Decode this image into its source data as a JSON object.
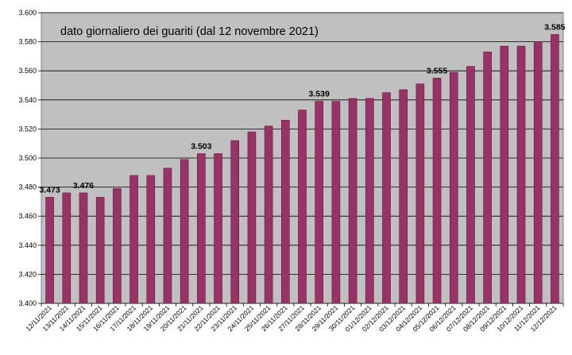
{
  "chart_data": {
    "type": "bar",
    "title": "dato giornaliero dei guariti (dal 12 novembre 2021)",
    "xlabel": "",
    "ylabel": "",
    "ylim": [
      3.4,
      3.6
    ],
    "yticks": [
      3.4,
      3.42,
      3.44,
      3.46,
      3.48,
      3.5,
      3.52,
      3.54,
      3.56,
      3.58,
      3.6
    ],
    "ytick_labels": [
      "3.400",
      "3.420",
      "3.440",
      "3.460",
      "3.480",
      "3.500",
      "3.520",
      "3.540",
      "3.560",
      "3.580",
      "3.600"
    ],
    "grid": true,
    "legend": "none",
    "colors": {
      "bar": "#993366",
      "bar_edge": "#5a1a3c",
      "plot_bg": "#c0c0c0",
      "grid": "#000000"
    },
    "categories": [
      "12/11/2021",
      "13/11/2021",
      "14/11/2021",
      "15/11/2021",
      "16/11/2021",
      "17/11/2021",
      "18/11/2021",
      "19/11/2021",
      "20/11/2021",
      "21/11/2021",
      "22/11/2021",
      "23/11/2021",
      "24/11/2021",
      "25/11/2021",
      "26/11/2021",
      "27/11/2021",
      "28/11/2021",
      "29/11/2021",
      "30/11/2021",
      "01/12/2021",
      "02/12/2021",
      "03/12/2021",
      "04/12/2021",
      "05/12/2021",
      "06/12/2021",
      "07/12/2021",
      "08/12/2021",
      "09/12/2021",
      "10/12/2021",
      "11/12/2021",
      "12/12/2021"
    ],
    "values": [
      3.473,
      3.476,
      3.476,
      3.473,
      3.479,
      3.488,
      3.488,
      3.493,
      3.499,
      3.503,
      3.503,
      3.512,
      3.518,
      3.522,
      3.526,
      3.533,
      3.539,
      3.539,
      3.541,
      3.541,
      3.545,
      3.547,
      3.551,
      3.555,
      3.559,
      3.563,
      3.573,
      3.577,
      3.577,
      3.58,
      3.585
    ],
    "data_labels": [
      {
        "index": 0,
        "text": "3.473"
      },
      {
        "index": 2,
        "text": "3.476"
      },
      {
        "index": 9,
        "text": "3.503"
      },
      {
        "index": 16,
        "text": "3.539"
      },
      {
        "index": 23,
        "text": "3.555"
      },
      {
        "index": 30,
        "text": "3.585"
      }
    ]
  }
}
